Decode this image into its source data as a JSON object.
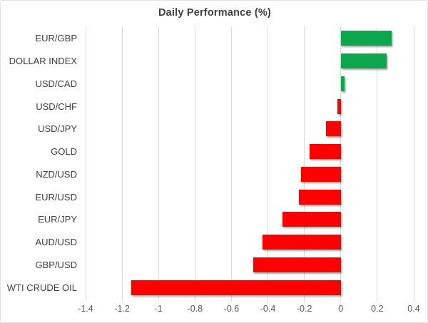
{
  "title": "Daily Performance (%)",
  "chart_data": {
    "type": "bar",
    "orientation": "horizontal",
    "title": "Daily Performance (%)",
    "categories": [
      "EUR/GBP",
      "DOLLAR INDEX",
      "USD/CAD",
      "USD/CHF",
      "USD/JPY",
      "GOLD",
      "NZD/USD",
      "EUR/USD",
      "EUR/JPY",
      "AUD/USD",
      "GBP/USD",
      "WTI CRUDE OIL"
    ],
    "values": [
      0.28,
      0.25,
      0.02,
      -0.02,
      -0.08,
      -0.17,
      -0.22,
      -0.23,
      -0.32,
      -0.43,
      -0.48,
      -1.15
    ],
    "xlabel": "",
    "ylabel": "",
    "xlim": [
      -1.4,
      0.4
    ],
    "xticks": [
      -1.4,
      -1.2,
      -1.0,
      -0.8,
      -0.6,
      -0.4,
      -0.2,
      0,
      0.2,
      0.4
    ],
    "xtick_labels": [
      "-1.4",
      "-1.2",
      "-1",
      "-0.8",
      "-0.6",
      "-0.4",
      "-0.2",
      "0",
      "0.2",
      "0.4"
    ],
    "grid": true,
    "legend": false,
    "colors": {
      "positive": "#0ca64c",
      "negative": "#ff0000",
      "gridline": "#d9d9d9",
      "category_label": "#404040",
      "tick_label": "#595959",
      "title": "#404040"
    }
  }
}
